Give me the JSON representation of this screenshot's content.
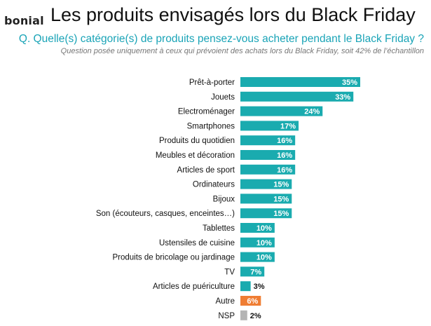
{
  "header": {
    "logo_text": "bonial",
    "title": "Les produits envisagés lors du Black Friday",
    "question": "Q. Quelle(s) catégorie(s) de produits pensez-vous acheter pendant le Black Friday ?",
    "note": "Question posée uniquement à ceux qui prévoient des achats lors du Black Friday, soit 42% de l’échantillon"
  },
  "colors": {
    "bar_main": "#1aabaf",
    "bar_other": "#ef7d33",
    "bar_nsp": "#b4b4b4",
    "question": "#1aa4b7"
  },
  "chart_data": {
    "type": "bar",
    "orientation": "horizontal",
    "categories": [
      "Prêt-à-porter",
      "Jouets",
      "Electroménager",
      "Smartphones",
      "Produits du quotidien",
      "Meubles et décoration",
      "Articles de sport",
      "Ordinateurs",
      "Bijoux",
      "Son (écouteurs, casques, enceintes…)",
      "Tablettes",
      "Ustensiles de cuisine",
      "Produits de bricolage ou jardinage",
      "TV",
      "Articles de puériculture",
      "Autre",
      "NSP"
    ],
    "values": [
      35,
      33,
      24,
      17,
      16,
      16,
      16,
      15,
      15,
      15,
      10,
      10,
      10,
      7,
      3,
      6,
      2
    ],
    "value_labels": [
      "35%",
      "33%",
      "24%",
      "17%",
      "16%",
      "16%",
      "16%",
      "15%",
      "15%",
      "15%",
      "10%",
      "10%",
      "10%",
      "7%",
      "3%",
      "6%",
      "2%"
    ],
    "bar_colors": [
      "main",
      "main",
      "main",
      "main",
      "main",
      "main",
      "main",
      "main",
      "main",
      "main",
      "main",
      "main",
      "main",
      "main",
      "main",
      "other",
      "nsp"
    ],
    "title": "Les produits envisagés lors du Black Friday",
    "xlabel": "",
    "ylabel": "",
    "xlim": [
      0,
      35
    ],
    "grid": false
  }
}
